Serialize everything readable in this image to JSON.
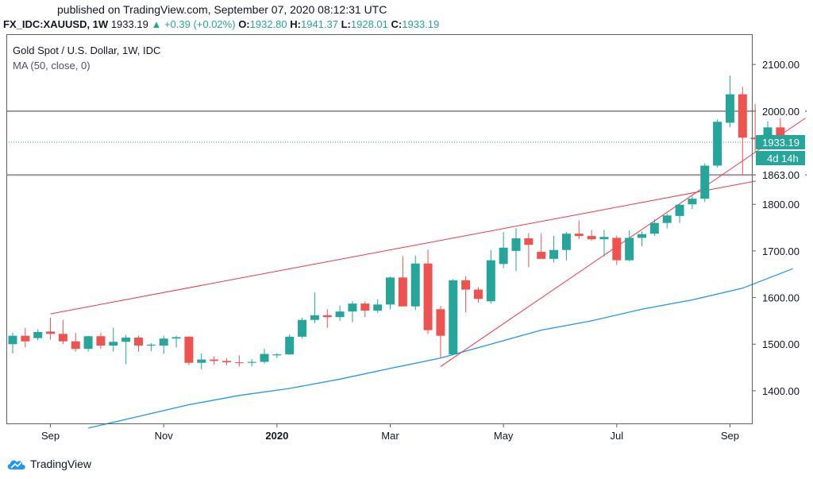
{
  "header": {
    "published": "published on TradingView.com, September 07, 2020 08:12:31 UTC",
    "symbol": "FX_IDC:XAUUSD, 1W",
    "last": "1933.19",
    "change": "+0.39 (+0.02%)",
    "open_label": "O:",
    "open": "1932.80",
    "high_label": "H:",
    "high": "1941.37",
    "low_label": "L:",
    "low": "1928.01",
    "close_label": "C:",
    "close": "1933.19",
    "up_arrow": "▲"
  },
  "legend": {
    "title": "Gold Spot / U.S. Dollar, 1W, IDC",
    "ma": "MA (50, close, 0)"
  },
  "price_tags": {
    "last": "1933.19",
    "countdown": "4d 14h",
    "level_high": "2000.00",
    "level_low": "1863.00"
  },
  "footer": {
    "brand": "TradingView"
  },
  "colors": {
    "up": "#26a69a",
    "down": "#ef5350",
    "ma": "#2196f3",
    "trend": "#f23645",
    "hline": "#9598a1",
    "axis": "#5d606b"
  },
  "chart_data": {
    "type": "candlestick",
    "title": "Gold Spot / U.S. Dollar, 1W, IDC",
    "x_tick_labels": [
      {
        "label": "Sep",
        "index": 3
      },
      {
        "label": "Nov",
        "index": 12
      },
      {
        "label": "2020",
        "index": 21
      },
      {
        "label": "Mar",
        "index": 30
      },
      {
        "label": "May",
        "index": 39
      },
      {
        "label": "Jul",
        "index": 48
      },
      {
        "label": "Sep",
        "index": 57
      }
    ],
    "y_ticks": [
      1400,
      1500,
      1600,
      1700,
      1800,
      2000,
      2100
    ],
    "ylim": [
      1330,
      2165
    ],
    "candles": [
      {
        "o": 1500,
        "h": 1525,
        "l": 1480,
        "c": 1518
      },
      {
        "o": 1518,
        "h": 1535,
        "l": 1493,
        "c": 1506
      },
      {
        "o": 1513,
        "h": 1532,
        "l": 1508,
        "c": 1526
      },
      {
        "o": 1527,
        "h": 1557,
        "l": 1510,
        "c": 1522
      },
      {
        "o": 1522,
        "h": 1552,
        "l": 1500,
        "c": 1506
      },
      {
        "o": 1506,
        "h": 1524,
        "l": 1484,
        "c": 1490
      },
      {
        "o": 1490,
        "h": 1518,
        "l": 1484,
        "c": 1517
      },
      {
        "o": 1517,
        "h": 1524,
        "l": 1490,
        "c": 1497
      },
      {
        "o": 1497,
        "h": 1535,
        "l": 1484,
        "c": 1505
      },
      {
        "o": 1505,
        "h": 1520,
        "l": 1457,
        "c": 1514
      },
      {
        "o": 1514,
        "h": 1518,
        "l": 1484,
        "c": 1497
      },
      {
        "o": 1497,
        "h": 1502,
        "l": 1485,
        "c": 1499
      },
      {
        "o": 1497,
        "h": 1518,
        "l": 1479,
        "c": 1512
      },
      {
        "o": 1512,
        "h": 1518,
        "l": 1493,
        "c": 1515
      },
      {
        "o": 1516,
        "h": 1517,
        "l": 1455,
        "c": 1460
      },
      {
        "o": 1460,
        "h": 1480,
        "l": 1446,
        "c": 1467
      },
      {
        "o": 1467,
        "h": 1474,
        "l": 1456,
        "c": 1464
      },
      {
        "o": 1464,
        "h": 1470,
        "l": 1455,
        "c": 1461
      },
      {
        "o": 1461,
        "h": 1476,
        "l": 1452,
        "c": 1460
      },
      {
        "o": 1460,
        "h": 1468,
        "l": 1452,
        "c": 1462
      },
      {
        "o": 1462,
        "h": 1490,
        "l": 1458,
        "c": 1479
      },
      {
        "o": 1476,
        "h": 1481,
        "l": 1470,
        "c": 1478
      },
      {
        "o": 1478,
        "h": 1521,
        "l": 1477,
        "c": 1516
      },
      {
        "o": 1516,
        "h": 1557,
        "l": 1512,
        "c": 1552
      },
      {
        "o": 1552,
        "h": 1611,
        "l": 1545,
        "c": 1562
      },
      {
        "o": 1562,
        "h": 1575,
        "l": 1535,
        "c": 1558
      },
      {
        "o": 1558,
        "h": 1583,
        "l": 1550,
        "c": 1570
      },
      {
        "o": 1570,
        "h": 1592,
        "l": 1547,
        "c": 1587
      },
      {
        "o": 1587,
        "h": 1592,
        "l": 1558,
        "c": 1572
      },
      {
        "o": 1572,
        "h": 1596,
        "l": 1567,
        "c": 1585
      },
      {
        "o": 1585,
        "h": 1645,
        "l": 1575,
        "c": 1643
      },
      {
        "o": 1643,
        "h": 1689,
        "l": 1581,
        "c": 1581
      },
      {
        "o": 1581,
        "h": 1690,
        "l": 1573,
        "c": 1673
      },
      {
        "o": 1673,
        "h": 1703,
        "l": 1522,
        "c": 1530
      },
      {
        "o": 1575,
        "h": 1582,
        "l": 1470,
        "c": 1518
      },
      {
        "o": 1478,
        "h": 1640,
        "l": 1478,
        "c": 1637
      },
      {
        "o": 1637,
        "h": 1646,
        "l": 1568,
        "c": 1617
      },
      {
        "o": 1617,
        "h": 1622,
        "l": 1589,
        "c": 1597
      },
      {
        "o": 1592,
        "h": 1702,
        "l": 1587,
        "c": 1680
      },
      {
        "o": 1672,
        "h": 1740,
        "l": 1663,
        "c": 1707
      },
      {
        "o": 1700,
        "h": 1749,
        "l": 1657,
        "c": 1727
      },
      {
        "o": 1727,
        "h": 1738,
        "l": 1665,
        "c": 1713
      },
      {
        "o": 1698,
        "h": 1738,
        "l": 1686,
        "c": 1683
      },
      {
        "o": 1683,
        "h": 1732,
        "l": 1675,
        "c": 1702
      },
      {
        "o": 1702,
        "h": 1741,
        "l": 1680,
        "c": 1737
      },
      {
        "o": 1737,
        "h": 1765,
        "l": 1725,
        "c": 1732
      },
      {
        "o": 1732,
        "h": 1745,
        "l": 1722,
        "c": 1725
      },
      {
        "o": 1725,
        "h": 1745,
        "l": 1688,
        "c": 1730
      },
      {
        "o": 1728,
        "h": 1733,
        "l": 1670,
        "c": 1680
      },
      {
        "o": 1680,
        "h": 1744,
        "l": 1678,
        "c": 1728
      },
      {
        "o": 1728,
        "h": 1742,
        "l": 1710,
        "c": 1736
      },
      {
        "o": 1737,
        "h": 1768,
        "l": 1732,
        "c": 1760
      },
      {
        "o": 1760,
        "h": 1780,
        "l": 1748,
        "c": 1776
      },
      {
        "o": 1775,
        "h": 1802,
        "l": 1760,
        "c": 1799
      },
      {
        "o": 1800,
        "h": 1818,
        "l": 1790,
        "c": 1812
      },
      {
        "o": 1812,
        "h": 1888,
        "l": 1805,
        "c": 1883
      },
      {
        "o": 1883,
        "h": 1982,
        "l": 1879,
        "c": 1977
      },
      {
        "o": 1975,
        "h": 2076,
        "l": 1965,
        "c": 2036
      },
      {
        "o": 2036,
        "h": 2052,
        "l": 1862,
        "c": 1943
      },
      {
        "o": 1943,
        "h": 2015,
        "l": 1910,
        "c": 1940
      },
      {
        "o": 1940,
        "h": 1978,
        "l": 1917,
        "c": 1965
      },
      {
        "o": 1965,
        "h": 1992,
        "l": 1918,
        "c": 1932
      },
      {
        "o": 1932.8,
        "h": 1941.37,
        "l": 1928.01,
        "c": 1933.19
      }
    ],
    "ma50": [
      {
        "i": 6,
        "v": 1320
      },
      {
        "i": 10,
        "v": 1345
      },
      {
        "i": 14,
        "v": 1370
      },
      {
        "i": 18,
        "v": 1390
      },
      {
        "i": 22,
        "v": 1405
      },
      {
        "i": 26,
        "v": 1425
      },
      {
        "i": 30,
        "v": 1448
      },
      {
        "i": 34,
        "v": 1470
      },
      {
        "i": 38,
        "v": 1500
      },
      {
        "i": 42,
        "v": 1530
      },
      {
        "i": 46,
        "v": 1550
      },
      {
        "i": 50,
        "v": 1575
      },
      {
        "i": 54,
        "v": 1595
      },
      {
        "i": 58,
        "v": 1620
      },
      {
        "i": 62,
        "v": 1662
      }
    ],
    "horizontal_levels": [
      2000,
      1863
    ],
    "trendlines": [
      {
        "from": {
          "i": 3,
          "v": 1565
        },
        "to": {
          "i": 63,
          "v": 1870
        }
      },
      {
        "from": {
          "i": 34,
          "v": 1452
        },
        "to": {
          "i": 63,
          "v": 1985
        }
      }
    ]
  }
}
